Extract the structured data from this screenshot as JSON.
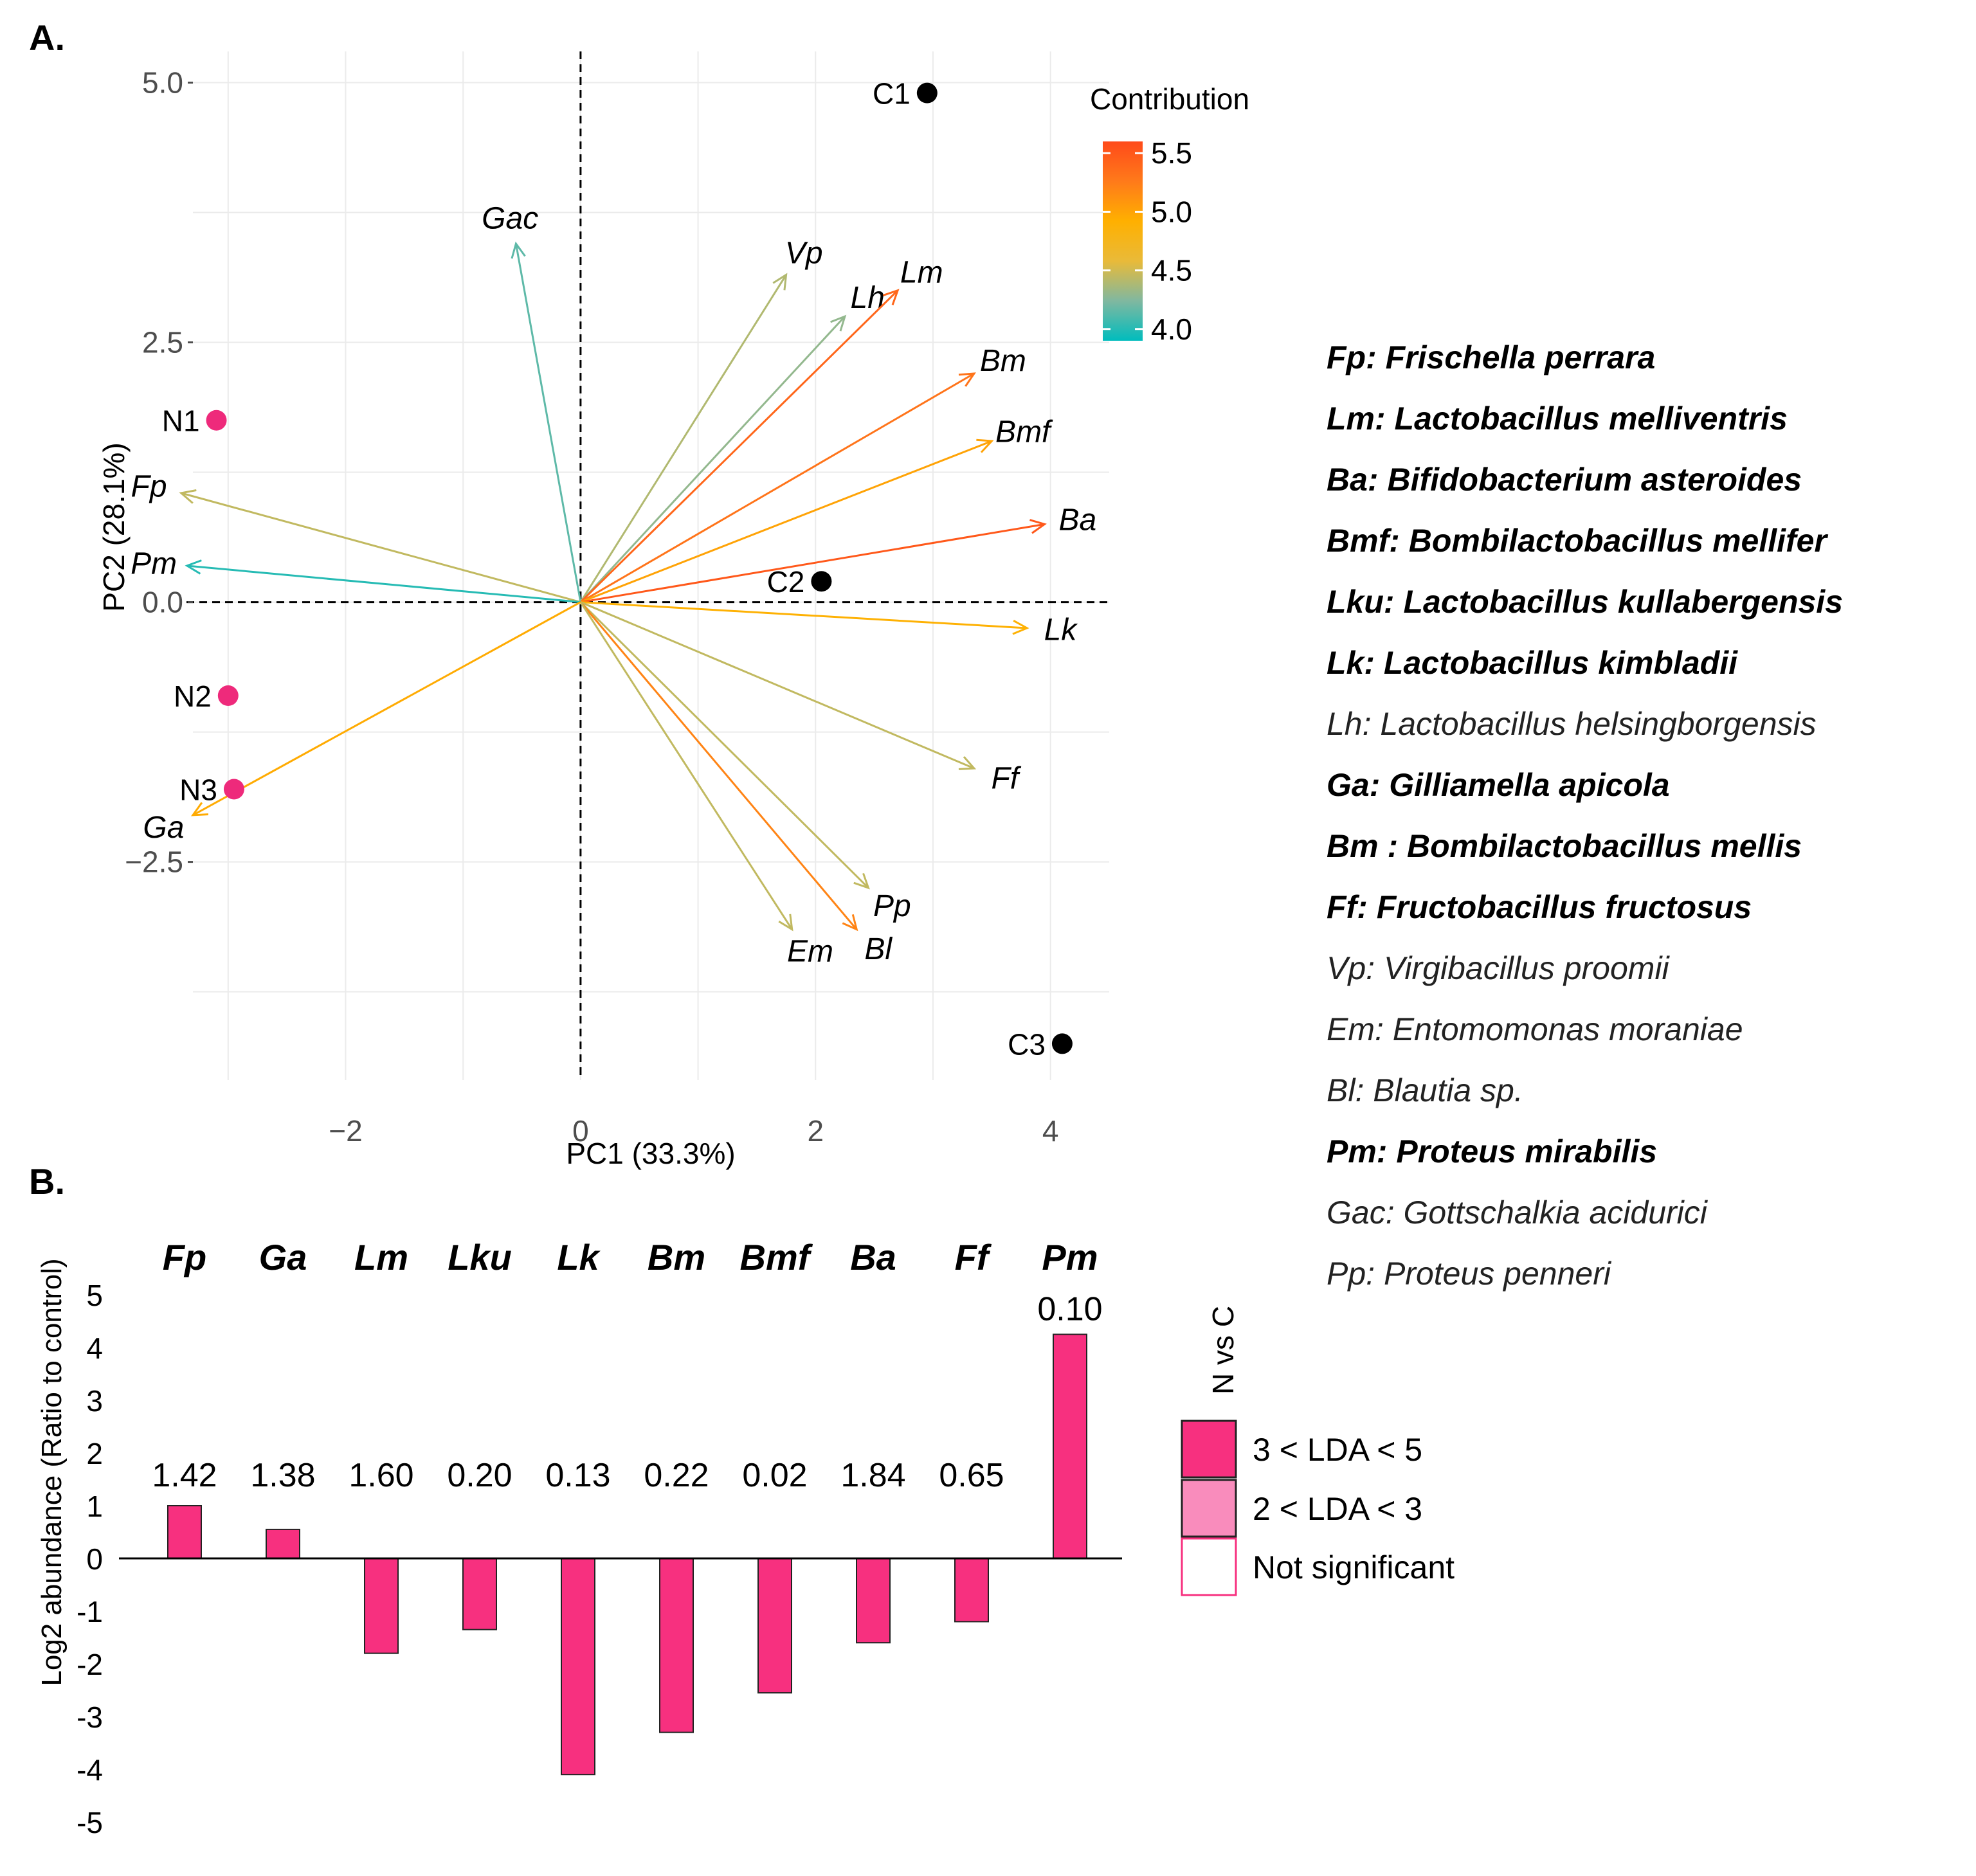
{
  "panel_a_label": "A.",
  "panel_b_label": "B.",
  "chart_data": [
    {
      "type": "scatter",
      "subtype": "pca-biplot",
      "xlabel": "PC1 (33.3%)",
      "ylabel": "PC2 (28.1%)",
      "xlim": [
        -3.3,
        4.5
      ],
      "ylim": [
        -4.6,
        5.3
      ],
      "xticks": [
        -2,
        0,
        2,
        4
      ],
      "xtick_labels": [
        "−2",
        "0",
        "2",
        "4"
      ],
      "yticks": [
        -2.5,
        0.0,
        2.5,
        5.0
      ],
      "ytick_labels": [
        "−2.5",
        "0.0",
        "2.5",
        "5.0"
      ],
      "grid": true,
      "samples": [
        {
          "name": "C1",
          "x": 2.95,
          "y": 4.9,
          "group": "C",
          "color": "#000000"
        },
        {
          "name": "C2",
          "x": 2.05,
          "y": 0.2,
          "group": "C",
          "color": "#000000"
        },
        {
          "name": "C3",
          "x": 4.1,
          "y": -4.25,
          "group": "C",
          "color": "#000000"
        },
        {
          "name": "N1",
          "x": -3.1,
          "y": 1.75,
          "group": "N",
          "color": "#ee2a7b"
        },
        {
          "name": "N2",
          "x": -3.0,
          "y": -0.9,
          "group": "N",
          "color": "#ee2a7b"
        },
        {
          "name": "N3",
          "x": -2.95,
          "y": -1.8,
          "group": "N",
          "color": "#ee2a7b"
        }
      ],
      "vectors": [
        {
          "name": "Gac",
          "x": -0.55,
          "y": 3.45,
          "contribution": 4.15
        },
        {
          "name": "Vp",
          "x": 1.75,
          "y": 3.15,
          "contribution": 4.4
        },
        {
          "name": "Lh",
          "x": 2.25,
          "y": 2.75,
          "contribution": 4.3
        },
        {
          "name": "Lm",
          "x": 2.7,
          "y": 3.0,
          "contribution": 5.4
        },
        {
          "name": "Bm",
          "x": 3.35,
          "y": 2.2,
          "contribution": 5.3
        },
        {
          "name": "Bmf",
          "x": 3.5,
          "y": 1.55,
          "contribution": 5.0
        },
        {
          "name": "Ba",
          "x": 3.95,
          "y": 0.75,
          "contribution": 5.5
        },
        {
          "name": "Lk",
          "x": 3.8,
          "y": -0.25,
          "contribution": 4.9
        },
        {
          "name": "Ff",
          "x": 3.35,
          "y": -1.6,
          "contribution": 4.45
        },
        {
          "name": "Pp",
          "x": 2.45,
          "y": -2.75,
          "contribution": 4.45
        },
        {
          "name": "Bl",
          "x": 2.35,
          "y": -3.15,
          "contribution": 5.2
        },
        {
          "name": "Em",
          "x": 1.8,
          "y": -3.15,
          "contribution": 4.45
        },
        {
          "name": "Fp",
          "x": -3.4,
          "y": 1.05,
          "contribution": 4.45
        },
        {
          "name": "Pm",
          "x": -3.35,
          "y": 0.35,
          "contribution": 4.0
        },
        {
          "name": "Ga",
          "x": -3.3,
          "y": -2.05,
          "contribution": 4.95
        }
      ],
      "legend": {
        "title": "Contribution",
        "ticks": [
          4.0,
          4.5,
          5.0,
          5.5
        ],
        "tick_labels": [
          "4.0",
          "4.5",
          "5.0",
          "5.5"
        ],
        "range": [
          3.9,
          5.6
        ],
        "colors": [
          "#00bcbd",
          "#80b8a0",
          "#e9ba39",
          "#ffb000",
          "#ff7a1a",
          "#ff4a1a"
        ],
        "position": "top-right"
      }
    },
    {
      "type": "bar",
      "ylabel": "Log2 abundance (Ratio to control)",
      "ylim": [
        -5,
        5
      ],
      "yticks": [
        -5,
        -4,
        -3,
        -2,
        -1,
        0,
        1,
        2,
        3,
        4,
        5
      ],
      "ytick_labels": [
        "-5",
        "-4",
        "-3",
        "-2",
        "-1",
        "0",
        "1",
        "2",
        "3",
        "4",
        "5"
      ],
      "categories": [
        "Fp",
        "Ga",
        "Lm",
        "Lku",
        "Lk",
        "Bm",
        "Bmf",
        "Ba",
        "Ff",
        "Pm"
      ],
      "values": [
        1.0,
        0.55,
        -1.8,
        -1.35,
        -4.1,
        -3.3,
        -2.55,
        -1.6,
        -1.2,
        4.25
      ],
      "value_labels": [
        "1.42",
        "1.38",
        "1.60",
        "0.20",
        "0.13",
        "0.22",
        "0.02",
        "1.84",
        "0.65",
        "0.10"
      ],
      "bar_color": "#f7307f",
      "legend": {
        "title": "N vs C",
        "items": [
          {
            "label": "3 < LDA < 5",
            "color": "#f7307f"
          },
          {
            "label": "2 < LDA < 3",
            "color": "#f98cbc"
          },
          {
            "label": "Not significant",
            "color": "#ffffff"
          }
        ]
      }
    }
  ],
  "species_legend": [
    {
      "abbr": "Fp",
      "name": "Frischella perrara",
      "bold": true
    },
    {
      "abbr": "Lm",
      "name": "Lactobacillus melliventris",
      "bold": true
    },
    {
      "abbr": "Ba",
      "name": "Bifidobacterium asteroides",
      "bold": true
    },
    {
      "abbr": "Bmf",
      "name": "Bombilactobacillus mellifer",
      "bold": true
    },
    {
      "abbr": "Lku",
      "name": "Lactobacillus kullabergensis",
      "bold": true
    },
    {
      "abbr": "Lk",
      "name": "Lactobacillus kimbladii",
      "bold": true
    },
    {
      "abbr": "Lh",
      "name": "Lactobacillus helsingborgensis",
      "bold": false
    },
    {
      "abbr": "Ga",
      "name": "Gilliamella apicola",
      "bold": true
    },
    {
      "abbr": "Bm ",
      "name": "Bombilactobacillus mellis",
      "bold": true
    },
    {
      "abbr": "Ff",
      "name": "Fructobacillus fructosus",
      "bold": true
    },
    {
      "abbr": "Vp",
      "name": "Virgibacillus proomii",
      "bold": false
    },
    {
      "abbr": "Em",
      "name": "Entomomonas moraniae",
      "bold": false
    },
    {
      "abbr": "Bl",
      "name": "Blautia sp.",
      "bold": false
    },
    {
      "abbr": "Pm",
      "name": "Proteus mirabilis",
      "bold": true
    },
    {
      "abbr": "Gac",
      "name": "Gottschalkia acidurici",
      "bold": false
    },
    {
      "abbr": "Pp",
      "name": "Proteus penneri",
      "bold": false
    }
  ]
}
